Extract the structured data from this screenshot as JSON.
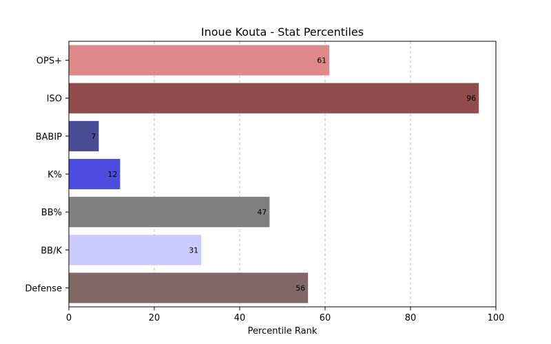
{
  "chart_data": {
    "type": "bar",
    "orientation": "horizontal",
    "title": "Inoue Kouta - Stat Percentiles",
    "xlabel": "Percentile Rank",
    "ylabel": "",
    "xlim": [
      0,
      100
    ],
    "xticks": [
      0,
      20,
      40,
      60,
      80,
      100
    ],
    "grid": "x-dashed",
    "categories": [
      "OPS+",
      "ISO",
      "BABIP",
      "K%",
      "BB%",
      "BB/K",
      "Defense"
    ],
    "values": [
      61,
      96,
      7,
      12,
      47,
      31,
      56
    ],
    "colors": [
      "#de8a8a",
      "#904d4d",
      "#4c4c96",
      "#4c4cde",
      "#808080",
      "#cbcbff",
      "#826767"
    ],
    "data_labels": [
      "61",
      "96",
      "7",
      "12",
      "47",
      "31",
      "56"
    ]
  }
}
